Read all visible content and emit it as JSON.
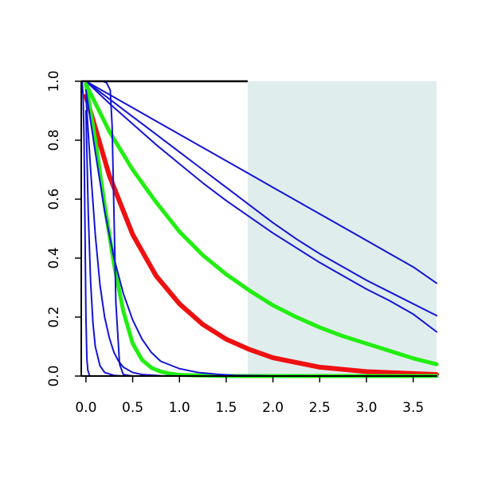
{
  "chart_data": {
    "type": "line",
    "title": "",
    "xlabel": "",
    "ylabel": "",
    "xlim": [
      -0.05,
      3.75
    ],
    "ylim": [
      0.0,
      1.0
    ],
    "x_ticks": [
      {
        "value": 0.0,
        "label": "0.0"
      },
      {
        "value": 0.5,
        "label": "0.5"
      },
      {
        "value": 1.0,
        "label": "1.0"
      },
      {
        "value": 1.5,
        "label": "1.5"
      },
      {
        "value": 2.0,
        "label": "2.0"
      },
      {
        "value": 2.5,
        "label": "2.5"
      },
      {
        "value": 3.0,
        "label": "3.0"
      },
      {
        "value": 3.5,
        "label": "3.5"
      }
    ],
    "y_ticks": [
      {
        "value": 0.0,
        "label": "0.0"
      },
      {
        "value": 0.2,
        "label": "0.2"
      },
      {
        "value": 0.4,
        "label": "0.4"
      },
      {
        "value": 0.6,
        "label": "0.6"
      },
      {
        "value": 0.8,
        "label": "0.8"
      },
      {
        "value": 1.0,
        "label": "1.0"
      }
    ],
    "grid": false,
    "legend": "none",
    "shaded_region": {
      "x_from": 1.73,
      "x_to": 3.75,
      "color": "#e0eded"
    },
    "top_reference_line": {
      "x_from": -0.05,
      "x_to": 1.73,
      "y": 1.0,
      "color": "#000000"
    },
    "colors": {
      "blue": "#1414d4",
      "green": "#22ee11",
      "red": "#ee1111"
    },
    "series": [
      {
        "color": "#1414d4",
        "width": 2,
        "x": [
          0,
          0.25,
          0.5,
          0.75,
          1.0,
          1.25,
          1.5,
          1.75,
          2.0,
          2.25,
          2.5,
          2.75,
          3.0,
          3.25,
          3.5,
          3.75
        ],
        "y": [
          1.0,
          0.955,
          0.91,
          0.865,
          0.82,
          0.775,
          0.73,
          0.685,
          0.64,
          0.595,
          0.55,
          0.505,
          0.46,
          0.415,
          0.37,
          0.315
        ]
      },
      {
        "color": "#1414d4",
        "width": 2,
        "x": [
          0,
          0.25,
          0.5,
          0.75,
          1.0,
          1.25,
          1.5,
          1.75,
          2.0,
          2.25,
          2.5,
          2.75,
          3.0,
          3.25,
          3.5,
          3.75
        ],
        "y": [
          1.0,
          0.94,
          0.88,
          0.82,
          0.76,
          0.7,
          0.64,
          0.58,
          0.52,
          0.465,
          0.415,
          0.37,
          0.325,
          0.285,
          0.245,
          0.205
        ]
      },
      {
        "color": "#1414d4",
        "width": 2,
        "x": [
          0,
          0.25,
          0.5,
          0.75,
          1.0,
          1.25,
          1.5,
          1.75,
          2.0,
          2.25,
          2.5,
          2.75,
          3.0,
          3.25,
          3.5,
          3.75
        ],
        "y": [
          1.0,
          0.925,
          0.855,
          0.785,
          0.72,
          0.655,
          0.595,
          0.54,
          0.485,
          0.435,
          0.385,
          0.34,
          0.295,
          0.255,
          0.21,
          0.15
        ]
      },
      {
        "color": "#22ee11",
        "width": 5,
        "x": [
          0,
          0.25,
          0.5,
          0.75,
          1.0,
          1.25,
          1.5,
          1.75,
          2.0,
          2.25,
          2.5,
          2.75,
          3.0,
          3.25,
          3.5,
          3.75
        ],
        "y": [
          0.99,
          0.83,
          0.7,
          0.59,
          0.49,
          0.41,
          0.345,
          0.29,
          0.24,
          0.2,
          0.165,
          0.135,
          0.11,
          0.085,
          0.06,
          0.04
        ]
      },
      {
        "color": "#ee1111",
        "width": 6,
        "x": [
          0,
          0.25,
          0.5,
          0.75,
          1.0,
          1.25,
          1.5,
          1.75,
          2.0,
          2.5,
          3.0,
          3.75
        ],
        "y": [
          0.95,
          0.68,
          0.48,
          0.34,
          0.245,
          0.175,
          0.125,
          0.09,
          0.062,
          0.03,
          0.015,
          0.005
        ]
      },
      {
        "color": "#22ee11",
        "width": 5,
        "x": [
          0,
          0.1,
          0.2,
          0.3,
          0.4,
          0.5,
          0.6,
          0.7,
          0.8,
          0.9,
          1.0,
          1.2,
          1.5,
          2.0,
          3.75
        ],
        "y": [
          0.99,
          0.8,
          0.58,
          0.38,
          0.22,
          0.11,
          0.055,
          0.028,
          0.015,
          0.008,
          0.004,
          0.002,
          0.0,
          0.0,
          0.0
        ]
      },
      {
        "color": "#1414d4",
        "width": 2,
        "x": [
          0,
          0.1,
          0.2,
          0.3,
          0.4,
          0.5,
          0.6,
          0.7,
          0.8,
          1.0,
          1.2,
          1.4,
          1.6,
          1.8,
          2.0,
          3.75
        ],
        "y": [
          0.97,
          0.76,
          0.56,
          0.4,
          0.28,
          0.19,
          0.125,
          0.08,
          0.05,
          0.025,
          0.012,
          0.006,
          0.002,
          0.001,
          0.0,
          0.0
        ]
      },
      {
        "color": "#1414d4",
        "width": 2,
        "x": [
          0,
          0.05,
          0.1,
          0.15,
          0.2,
          0.25,
          0.3,
          0.35,
          0.4,
          0.5,
          0.6,
          0.8,
          1.0,
          3.75
        ],
        "y": [
          0.95,
          0.7,
          0.48,
          0.31,
          0.2,
          0.13,
          0.08,
          0.05,
          0.03,
          0.012,
          0.005,
          0.001,
          0.0,
          0.0
        ]
      },
      {
        "color": "#1414d4",
        "width": 2,
        "x": [
          0,
          0.025,
          0.05,
          0.075,
          0.1,
          0.15,
          0.2,
          0.3,
          0.4,
          3.75
        ],
        "y": [
          0.9,
          0.55,
          0.32,
          0.18,
          0.1,
          0.035,
          0.012,
          0.002,
          0.0,
          0.0
        ]
      },
      {
        "color": "#1414d4",
        "width": 2,
        "x": [
          -0.04,
          -0.03,
          -0.02,
          -0.01,
          0,
          0.01,
          0.02,
          0.04,
          3.75
        ],
        "y": [
          1.0,
          0.95,
          0.8,
          0.5,
          0.2,
          0.06,
          0.02,
          0.0,
          0.0
        ]
      },
      {
        "color": "#1414d4",
        "width": 2,
        "x": [
          -0.04,
          0,
          0.1,
          0.18,
          0.22,
          0.26,
          0.28,
          0.3,
          0.32,
          0.36,
          0.4,
          0.5,
          3.75
        ],
        "y": [
          1.0,
          1.0,
          1.0,
          1.0,
          0.995,
          0.97,
          0.85,
          0.55,
          0.25,
          0.04,
          0.005,
          0.0,
          0.0
        ]
      }
    ]
  }
}
